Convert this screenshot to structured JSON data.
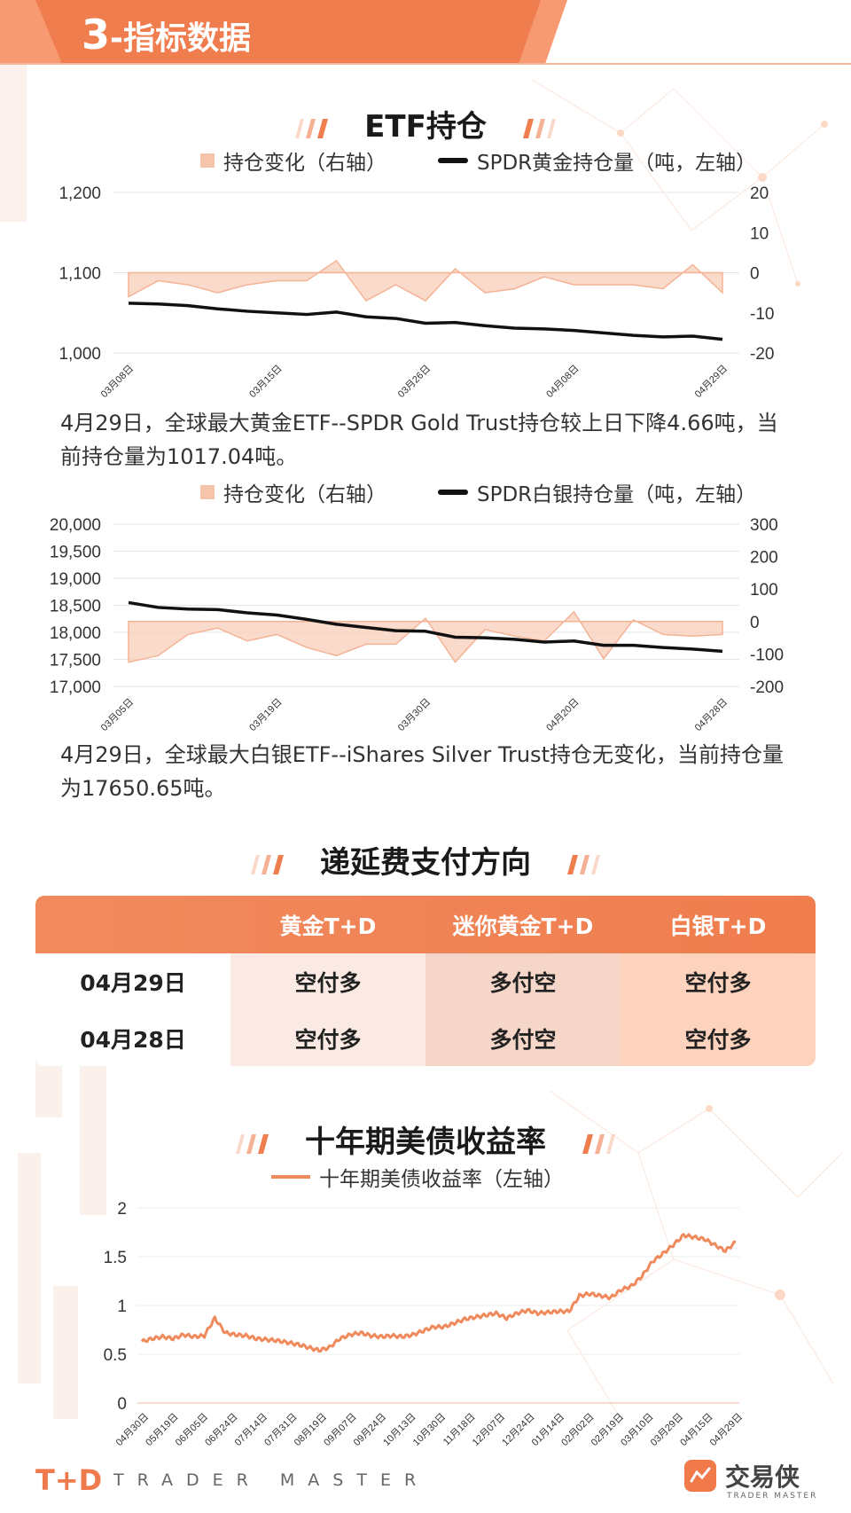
{
  "header": {
    "number": "3",
    "title": "-指标数据"
  },
  "sections": {
    "etf": "ETF持仓",
    "fee": "递延费支付方向",
    "bond": "十年期美债收益率"
  },
  "gold": {
    "legend_area": "持仓变化（右轴）",
    "legend_line": "SPDR黄金持仓量（吨，左轴）",
    "note": "4月29日，全球最大黄金ETF--SPDR Gold Trust持仓较上日下降4.66吨，当前持仓量为1017.04吨。"
  },
  "silver": {
    "legend_area": "持仓变化（右轴）",
    "legend_line": "SPDR白银持仓量（吨，左轴）",
    "note": "4月29日，全球最大白银ETF--iShares Silver Trust持仓无变化，当前持仓量为17650.65吨。"
  },
  "bond": {
    "legend": "十年期美债收益率（左轴）"
  },
  "fee_table": {
    "headers": [
      "",
      "黄金T+D",
      "迷你黄金T+D",
      "白银T+D"
    ],
    "rows": [
      [
        "04月29日",
        "空付多",
        "多付空",
        "空付多"
      ],
      [
        "04月28日",
        "空付多",
        "多付空",
        "空付多"
      ]
    ]
  },
  "footer": {
    "brand": "T+D",
    "brand_sub": "TRADER MASTER",
    "brand_cn": "交易侠",
    "brand_en": "TRADER MASTER"
  },
  "colors": {
    "accent": "#f07d4e",
    "area": "#f6c4ab",
    "line": "#111111",
    "bond": "#ef8a5c"
  },
  "chart_data": [
    {
      "type": "line",
      "name": "gold-etf",
      "x_ticks": [
        "03月08日",
        "03月15日",
        "03月26日",
        "04月08日",
        "04月29日"
      ],
      "yleft_ticks": [
        "1,000",
        "1,100",
        "1,200"
      ],
      "yleft_range": [
        1000,
        1200
      ],
      "yright_ticks": [
        "-20",
        "-10",
        "0",
        "10",
        "20"
      ],
      "yright_range": [
        -20,
        20
      ],
      "series": [
        {
          "name": "SPDR黄金持仓量（吨，左轴）",
          "axis": "left",
          "values": [
            1062,
            1061,
            1059,
            1055,
            1052,
            1050,
            1048,
            1051,
            1045,
            1043,
            1037,
            1038,
            1034,
            1031,
            1030,
            1028,
            1025,
            1022,
            1020,
            1021,
            1017
          ]
        },
        {
          "name": "持仓变化（右轴）",
          "axis": "right",
          "kind": "area",
          "values": [
            -6,
            -2,
            -3,
            -5,
            -3,
            -2,
            -2,
            3,
            -7,
            -3,
            -7,
            1,
            -5,
            -4,
            -1,
            -3,
            -3,
            -3,
            -4,
            2,
            -5
          ]
        }
      ],
      "grid": true
    },
    {
      "type": "line",
      "name": "silver-etf",
      "x_ticks": [
        "03月05日",
        "03月19日",
        "03月30日",
        "04月20日",
        "04月28日"
      ],
      "yleft_ticks": [
        "17,000",
        "17,500",
        "18,000",
        "18,500",
        "19,000",
        "19,500",
        "20,000"
      ],
      "yleft_range": [
        17000,
        20000
      ],
      "yright_ticks": [
        "-200",
        "-100",
        "0",
        "100",
        "200",
        "300"
      ],
      "yright_range": [
        -200,
        300
      ],
      "series": [
        {
          "name": "SPDR白银持仓量（吨，左轴）",
          "axis": "left",
          "values": [
            18550,
            18460,
            18430,
            18420,
            18360,
            18320,
            18240,
            18150,
            18090,
            18030,
            18020,
            17910,
            17900,
            17870,
            17820,
            17840,
            17760,
            17760,
            17720,
            17690,
            17650
          ]
        },
        {
          "name": "持仓变化（右轴）",
          "axis": "right",
          "kind": "area",
          "values": [
            -125,
            -105,
            -40,
            -20,
            -60,
            -40,
            -80,
            -105,
            -70,
            -70,
            10,
            -125,
            -25,
            -45,
            -60,
            30,
            -115,
            5,
            -40,
            -45,
            -40
          ]
        }
      ],
      "grid": true
    },
    {
      "type": "line",
      "name": "us10y",
      "x_ticks": [
        "04月30日",
        "05月19日",
        "06月05日",
        "06月24日",
        "07月14日",
        "07月31日",
        "08月19日",
        "09月07日",
        "09月24日",
        "10月13日",
        "10月30日",
        "11月18日",
        "12月07日",
        "12月24日",
        "01月14日",
        "02月02日",
        "02月19日",
        "03月10日",
        "03月29日",
        "04月15日",
        "04月29日"
      ],
      "y_ticks": [
        "0",
        "0.5",
        "1",
        "1.5",
        "2"
      ],
      "ylim": [
        0,
        2
      ],
      "series": [
        {
          "name": "十年期美债收益率（左轴）",
          "values": [
            0.63,
            0.66,
            0.68,
            0.66,
            0.7,
            0.68,
            0.69,
            0.87,
            0.72,
            0.7,
            0.69,
            0.66,
            0.65,
            0.64,
            0.62,
            0.6,
            0.57,
            0.54,
            0.57,
            0.66,
            0.7,
            0.72,
            0.69,
            0.68,
            0.69,
            0.68,
            0.7,
            0.74,
            0.78,
            0.78,
            0.82,
            0.86,
            0.88,
            0.9,
            0.92,
            0.87,
            0.92,
            0.95,
            0.92,
            0.93,
            0.94,
            0.94,
            1.1,
            1.12,
            1.1,
            1.08,
            1.16,
            1.2,
            1.3,
            1.45,
            1.53,
            1.62,
            1.72,
            1.7,
            1.68,
            1.62,
            1.56,
            1.65
          ]
        }
      ],
      "grid": true
    }
  ]
}
